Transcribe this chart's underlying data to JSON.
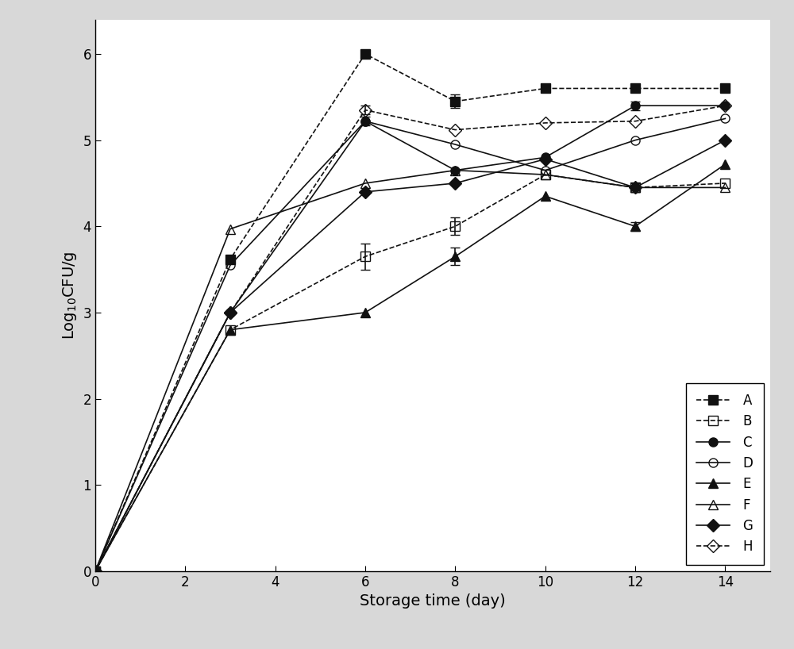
{
  "series": {
    "A": {
      "x": [
        0,
        3,
        6,
        8,
        10,
        12,
        14
      ],
      "y": [
        0,
        3.62,
        6.0,
        5.45,
        5.6,
        5.6,
        5.6
      ],
      "yerr": [
        0,
        0,
        0.05,
        0.08,
        0,
        0,
        0
      ],
      "marker": "s",
      "fillstyle": "full",
      "linestyle": "--",
      "color": "#111111",
      "label": "A"
    },
    "B": {
      "x": [
        0,
        3,
        6,
        8,
        10,
        12,
        14
      ],
      "y": [
        0,
        2.8,
        3.65,
        4.0,
        4.6,
        4.45,
        4.5
      ],
      "yerr": [
        0,
        0,
        0.15,
        0.1,
        0,
        0,
        0
      ],
      "marker": "s",
      "fillstyle": "none",
      "linestyle": "--",
      "color": "#111111",
      "label": "B"
    },
    "C": {
      "x": [
        0,
        3,
        6,
        8,
        10,
        12,
        14
      ],
      "y": [
        0,
        3.0,
        5.22,
        4.65,
        4.8,
        5.4,
        5.4
      ],
      "yerr": [
        0,
        0,
        0.05,
        0,
        0,
        0.05,
        0
      ],
      "marker": "o",
      "fillstyle": "full",
      "linestyle": "-",
      "color": "#111111",
      "label": "C"
    },
    "D": {
      "x": [
        0,
        3,
        6,
        8,
        10,
        12,
        14
      ],
      "y": [
        0,
        3.55,
        5.22,
        4.95,
        4.65,
        5.0,
        5.25
      ],
      "yerr": [
        0,
        0,
        0,
        0,
        0,
        0,
        0
      ],
      "marker": "o",
      "fillstyle": "none",
      "linestyle": "-",
      "color": "#111111",
      "label": "D"
    },
    "E": {
      "x": [
        0,
        3,
        6,
        8,
        10,
        12,
        14
      ],
      "y": [
        0,
        2.8,
        3.0,
        3.65,
        4.35,
        4.0,
        4.72
      ],
      "yerr": [
        0,
        0,
        0,
        0.1,
        0,
        0.05,
        0
      ],
      "marker": "^",
      "fillstyle": "full",
      "linestyle": "-",
      "color": "#111111",
      "label": "E"
    },
    "F": {
      "x": [
        0,
        3,
        6,
        8,
        10,
        12,
        14
      ],
      "y": [
        0,
        3.97,
        4.5,
        4.65,
        4.6,
        4.45,
        4.45
      ],
      "yerr": [
        0,
        0,
        0,
        0,
        0,
        0.05,
        0
      ],
      "marker": "^",
      "fillstyle": "none",
      "linestyle": "-",
      "color": "#111111",
      "label": "F"
    },
    "G": {
      "x": [
        0,
        3,
        6,
        8,
        10,
        12,
        14
      ],
      "y": [
        0,
        3.0,
        4.4,
        4.5,
        4.78,
        4.45,
        5.0
      ],
      "yerr": [
        0,
        0,
        0,
        0,
        0,
        0,
        0
      ],
      "marker": "D",
      "fillstyle": "full",
      "linestyle": "-",
      "color": "#111111",
      "label": "G"
    },
    "H": {
      "x": [
        0,
        3,
        6,
        8,
        10,
        12,
        14
      ],
      "y": [
        0,
        3.0,
        5.35,
        5.12,
        5.2,
        5.22,
        5.4
      ],
      "yerr": [
        0,
        0,
        0.05,
        0,
        0,
        0,
        0
      ],
      "marker": "D",
      "fillstyle": "none",
      "linestyle": "--",
      "color": "#111111",
      "label": "H"
    }
  },
  "xlabel": "Storage time (day)",
  "ylabel": "Log$_{10}$CFU/g",
  "xlim": [
    0,
    15
  ],
  "ylim": [
    0,
    6.4
  ],
  "xticks": [
    0,
    2,
    4,
    6,
    8,
    10,
    12,
    14
  ],
  "yticks": [
    0,
    1,
    2,
    3,
    4,
    5,
    6
  ],
  "legend_loc": "lower right",
  "background_color": "#d8d8d8",
  "plot_bg_color": "#ffffff",
  "figsize": [
    10,
    8.18
  ],
  "dpi": 100
}
